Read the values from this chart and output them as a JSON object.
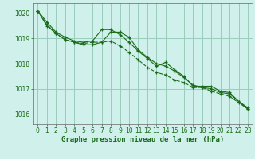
{
  "xlabel": "Graphe pression niveau de la mer (hPa)",
  "background_color": "#cff0eb",
  "grid_color": "#99ccbb",
  "line_color": "#1a6b1a",
  "xlim": [
    -0.5,
    23.5
  ],
  "ylim": [
    1015.6,
    1020.4
  ],
  "yticks": [
    1016,
    1017,
    1018,
    1019,
    1020
  ],
  "xticks": [
    0,
    1,
    2,
    3,
    4,
    5,
    6,
    7,
    8,
    9,
    10,
    11,
    12,
    13,
    14,
    15,
    16,
    17,
    18,
    19,
    20,
    21,
    22,
    23
  ],
  "line1_x": [
    0,
    1,
    2,
    3,
    4,
    5,
    6,
    7,
    8,
    9,
    10,
    11,
    12,
    13,
    14,
    15,
    16,
    17,
    18,
    19,
    20,
    21,
    22,
    23
  ],
  "line1_y": [
    1020.1,
    1019.65,
    1019.25,
    1019.05,
    1018.9,
    1018.85,
    1018.9,
    1019.35,
    1019.35,
    1019.15,
    1018.85,
    1018.5,
    1018.2,
    1017.9,
    1018.05,
    1017.75,
    1017.5,
    1017.1,
    1017.1,
    1017.1,
    1016.9,
    1016.85,
    1016.5,
    1016.25
  ],
  "line2_x": [
    0,
    1,
    2,
    3,
    4,
    5,
    6,
    7,
    8,
    9,
    10,
    11,
    12,
    13,
    14,
    15,
    16,
    17,
    18,
    19,
    20,
    21,
    22,
    23
  ],
  "line2_y": [
    1020.1,
    1019.55,
    1019.2,
    1018.95,
    1018.85,
    1018.8,
    1018.85,
    1018.85,
    1018.9,
    1018.7,
    1018.45,
    1018.15,
    1017.85,
    1017.65,
    1017.55,
    1017.35,
    1017.25,
    1017.05,
    1017.05,
    1016.9,
    1016.8,
    1016.7,
    1016.45,
    1016.2
  ],
  "line3_x": [
    0,
    1,
    2,
    3,
    4,
    5,
    6,
    7,
    8,
    9,
    10,
    11,
    12,
    13,
    14,
    15,
    16,
    17,
    18,
    19,
    20,
    21,
    22,
    23
  ],
  "line3_y": [
    1020.1,
    1019.5,
    1019.2,
    1018.95,
    1018.85,
    1018.75,
    1018.75,
    1018.85,
    1019.25,
    1019.25,
    1019.05,
    1018.55,
    1018.25,
    1018.0,
    1017.9,
    1017.7,
    1017.45,
    1017.15,
    1017.05,
    1017.0,
    1016.85,
    1016.8,
    1016.5,
    1016.2
  ],
  "tick_fontsize": 5.5,
  "xlabel_fontsize": 6.5
}
